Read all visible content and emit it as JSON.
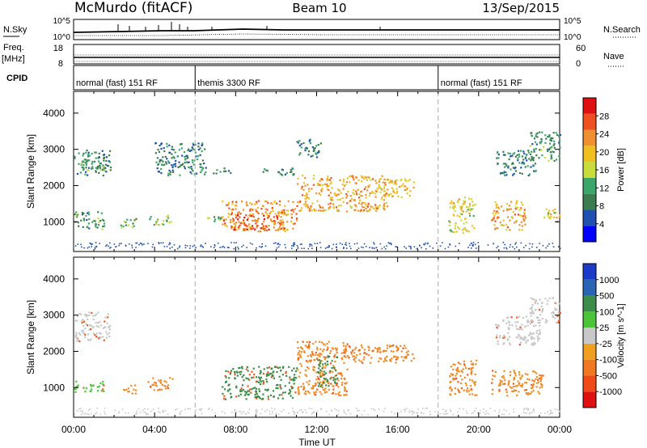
{
  "header": {
    "station": "McMurdo (fitACF)",
    "beam": "Beam 10",
    "date": "13/Sep/2015"
  },
  "top_panels": {
    "nsky_label": "N.Sky",
    "nsearch_label": "N.Search",
    "nsky_ticks": [
      "10^5",
      "10^0"
    ],
    "nsearch_ticks": [
      "10^5",
      "10^0"
    ],
    "freq_label": "Freq.",
    "freq_unit": "[MHz]",
    "freq_ticks": [
      "18",
      "8"
    ],
    "nave_label": "Nave",
    "nave_ticks": [
      "60",
      "0"
    ],
    "cpid_label": "CPID",
    "cpid_segments": [
      {
        "start_ut": 0,
        "end_ut": 6,
        "label": "normal (fast) 151 RF"
      },
      {
        "start_ut": 6,
        "end_ut": 18,
        "label": "themis 3300 RF"
      },
      {
        "start_ut": 18,
        "end_ut": 24,
        "label": "normal (fast) 151 RF"
      }
    ]
  },
  "chart_data": [
    {
      "type": "heatmap",
      "panel": "power",
      "ylabel": "Slant Range [km]",
      "xlabel": "Time UT",
      "ylim": [
        180,
        4600
      ],
      "xlim_hours": [
        0,
        24
      ],
      "x_ticks": [
        "00:00",
        "04:00",
        "08:00",
        "12:00",
        "16:00",
        "20:00",
        "00:00"
      ],
      "y_ticks": [
        1000,
        2000,
        3000,
        4000
      ],
      "colorbar": {
        "label": "Power [dB]",
        "ticks": [
          4,
          8,
          12,
          16,
          20,
          24,
          28
        ],
        "range": [
          0,
          32
        ],
        "colors": [
          "#0000ff",
          "#2050b0",
          "#3c7d4f",
          "#3ba56a",
          "#c8dc3c",
          "#f0c020",
          "#f09030",
          "#f05020",
          "#e01010"
        ]
      },
      "scatter_regions": [
        {
          "t0": 0.0,
          "t1": 1.8,
          "r0": 2300,
          "r1": 3000,
          "level": 8
        },
        {
          "t0": 0.3,
          "t1": 1.5,
          "r0": 2400,
          "r1": 2700,
          "level": 12
        },
        {
          "t0": 0.0,
          "t1": 1.5,
          "r0": 800,
          "r1": 1300,
          "level": 10
        },
        {
          "t0": 2.3,
          "t1": 3.1,
          "r0": 850,
          "r1": 1150,
          "level": 14
        },
        {
          "t0": 3.7,
          "t1": 4.8,
          "r0": 900,
          "r1": 1200,
          "level": 14
        },
        {
          "t0": 4.0,
          "t1": 6.5,
          "r0": 2300,
          "r1": 3200,
          "level": 8
        },
        {
          "t0": 6.8,
          "t1": 7.8,
          "r0": 2350,
          "r1": 2500,
          "level": 8
        },
        {
          "t0": 6.5,
          "t1": 7.3,
          "r0": 1000,
          "r1": 1200,
          "level": 12
        },
        {
          "t0": 7.3,
          "t1": 11.0,
          "r0": 750,
          "r1": 1600,
          "level": 24
        },
        {
          "t0": 7.8,
          "t1": 10.3,
          "r0": 800,
          "r1": 1200,
          "level": 28
        },
        {
          "t0": 9.3,
          "t1": 11.0,
          "r0": 2300,
          "r1": 2500,
          "level": 8
        },
        {
          "t0": 11.0,
          "t1": 12.2,
          "r0": 2800,
          "r1": 3300,
          "level": 8
        },
        {
          "t0": 11.0,
          "t1": 15.5,
          "r0": 1300,
          "r1": 2300,
          "level": 22
        },
        {
          "t0": 15.0,
          "t1": 16.8,
          "r0": 1700,
          "r1": 2200,
          "level": 20
        },
        {
          "t0": 18.5,
          "t1": 19.8,
          "r0": 700,
          "r1": 1700,
          "level": 18
        },
        {
          "t0": 20.6,
          "t1": 22.3,
          "r0": 800,
          "r1": 1600,
          "level": 22
        },
        {
          "t0": 20.8,
          "t1": 22.8,
          "r0": 2300,
          "r1": 3000,
          "level": 8
        },
        {
          "t0": 22.5,
          "t1": 24.0,
          "r0": 2700,
          "r1": 3500,
          "level": 10
        },
        {
          "t0": 23.2,
          "t1": 24.0,
          "r0": 1000,
          "r1": 1400,
          "level": 18
        }
      ]
    },
    {
      "type": "heatmap",
      "panel": "velocity",
      "ylabel": "Slant Range [km]",
      "xlabel": "Time UT",
      "ylim": [
        180,
        4600
      ],
      "xlim_hours": [
        0,
        24
      ],
      "x_ticks": [
        "00:00",
        "04:00",
        "08:00",
        "12:00",
        "16:00",
        "20:00",
        "00:00"
      ],
      "y_ticks": [
        1000,
        2000,
        3000,
        4000
      ],
      "colorbar": {
        "label": "Velocity [m s^-1]",
        "ticks": [
          "1000",
          "500",
          "100",
          "25",
          "-25",
          "-100",
          "-500",
          "-1000"
        ],
        "colors": [
          "#1a3cc8",
          "#2a64b4",
          "#3c8c4a",
          "#4cc43a",
          "#c8c8c8",
          "#f0a020",
          "#f07820",
          "#f04a18",
          "#e01010"
        ]
      },
      "scatter_regions": [
        {
          "t0": 0.0,
          "t1": 1.8,
          "r0": 2300,
          "r1": 3100,
          "class": "grey"
        },
        {
          "t0": 0.0,
          "t1": 1.5,
          "r0": 900,
          "r1": 1200,
          "class": "lightgreen"
        },
        {
          "t0": 2.4,
          "t1": 3.2,
          "r0": 850,
          "r1": 1100,
          "class": "orange"
        },
        {
          "t0": 3.6,
          "t1": 4.9,
          "r0": 950,
          "r1": 1300,
          "class": "orange"
        },
        {
          "t0": 7.3,
          "t1": 11.0,
          "r0": 700,
          "r1": 1600,
          "class": "green"
        },
        {
          "t0": 11.0,
          "t1": 13.5,
          "r0": 800,
          "r1": 2300,
          "class": "orange"
        },
        {
          "t0": 13.5,
          "t1": 16.8,
          "r0": 1700,
          "r1": 2200,
          "class": "orange"
        },
        {
          "t0": 12.0,
          "t1": 13.0,
          "r0": 1000,
          "r1": 1900,
          "class": "green"
        },
        {
          "t0": 18.5,
          "t1": 19.9,
          "r0": 800,
          "r1": 1800,
          "class": "orange"
        },
        {
          "t0": 20.6,
          "t1": 23.2,
          "r0": 800,
          "r1": 1500,
          "class": "orange"
        },
        {
          "t0": 20.8,
          "t1": 23.0,
          "r0": 2200,
          "r1": 3000,
          "class": "grey"
        },
        {
          "t0": 22.5,
          "t1": 24.0,
          "r0": 2800,
          "r1": 3500,
          "class": "grey"
        }
      ]
    }
  ]
}
